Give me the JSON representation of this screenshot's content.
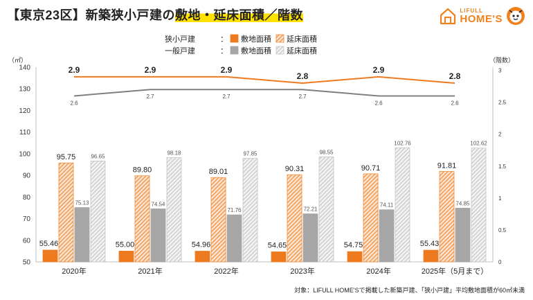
{
  "title": {
    "prefix": "【東京23区】新築狭小戸建の",
    "highlight": "敷地・延床面積／階数"
  },
  "logo": {
    "top": "LIFULL",
    "bottom": "HOME'S"
  },
  "legend": {
    "rows": [
      {
        "group": "狭小戸建",
        "sep": "：",
        "items": [
          {
            "label": "敷地面積",
            "style": "solid-orange"
          },
          {
            "label": "延床面積",
            "style": "hatch-orange"
          }
        ]
      },
      {
        "group": "一般戸建",
        "sep": "：",
        "items": [
          {
            "label": "敷地面積",
            "style": "solid-gray"
          },
          {
            "label": "延床面積",
            "style": "hatch-gray"
          }
        ]
      }
    ]
  },
  "colors": {
    "orange": "#ee7a1f",
    "orange_hatch": "#ef8a35",
    "gray": "#a6a6a6",
    "gray_hatch": "#c4c4c4",
    "line_orange": "#ee7a1f",
    "line_gray": "#808080"
  },
  "chart_data": {
    "type": "bar",
    "categories": [
      "2020年",
      "2021年",
      "2022年",
      "2023年",
      "2024年",
      "2025年（5月まで）"
    ],
    "y_unit_label": "（㎡）",
    "y2_unit_label": "（階数）",
    "ylim": [
      50,
      140
    ],
    "yticks": [
      50,
      60,
      70,
      80,
      90,
      100,
      110,
      120,
      130,
      140
    ],
    "y2lim": [
      0,
      3.05
    ],
    "y2ticks": [
      0,
      0.5,
      1,
      1.5,
      2,
      2.5,
      3
    ],
    "series": [
      {
        "name": "狭小戸建 敷地面積",
        "kind": "bar",
        "style": "solid-orange",
        "values": [
          55.46,
          55.0,
          54.96,
          54.65,
          54.75,
          55.43
        ],
        "labels": [
          "55.46",
          "55.00",
          "54.96",
          "54.65",
          "54.75",
          "55.43"
        ]
      },
      {
        "name": "狭小戸建 延床面積",
        "kind": "bar",
        "style": "hatch-orange",
        "values": [
          95.75,
          89.8,
          89.01,
          90.31,
          90.71,
          91.81
        ],
        "labels": [
          "95.75",
          "89.80",
          "89.01",
          "90.31",
          "90.71",
          "91.81"
        ]
      },
      {
        "name": "一般戸建 敷地面積",
        "kind": "bar",
        "style": "solid-gray",
        "values": [
          75.13,
          74.54,
          71.76,
          72.21,
          74.11,
          74.85
        ],
        "labels": [
          "75.13",
          "74.54",
          "71.76",
          "72.21",
          "74.11",
          "74.85"
        ]
      },
      {
        "name": "一般戸建 延床面積",
        "kind": "bar",
        "style": "hatch-gray",
        "values": [
          96.65,
          98.18,
          97.85,
          98.55,
          102.76,
          102.62
        ],
        "labels": [
          "96.65",
          "98.18",
          "97.85",
          "98.55",
          "102.76",
          "102.62"
        ]
      },
      {
        "name": "狭小戸建 階数",
        "kind": "line",
        "axis": "y2",
        "style": "line-orange",
        "values": [
          2.9,
          2.9,
          2.9,
          2.8,
          2.9,
          2.8
        ],
        "labels": [
          "2.9",
          "2.9",
          "2.9",
          "2.8",
          "2.9",
          "2.8"
        ]
      },
      {
        "name": "一般戸建 階数",
        "kind": "line",
        "axis": "y2",
        "style": "line-gray",
        "values": [
          2.6,
          2.7,
          2.7,
          2.7,
          2.6,
          2.6
        ],
        "labels": [
          "2.6",
          "2.7",
          "2.7",
          "2.7",
          "2.6",
          "2.6"
        ]
      }
    ],
    "grid": false
  },
  "footnote": "対象：LIFULL HOME'Sで掲載した新築戸建、「狭小戸建」平均敷地面積が60㎡未満"
}
